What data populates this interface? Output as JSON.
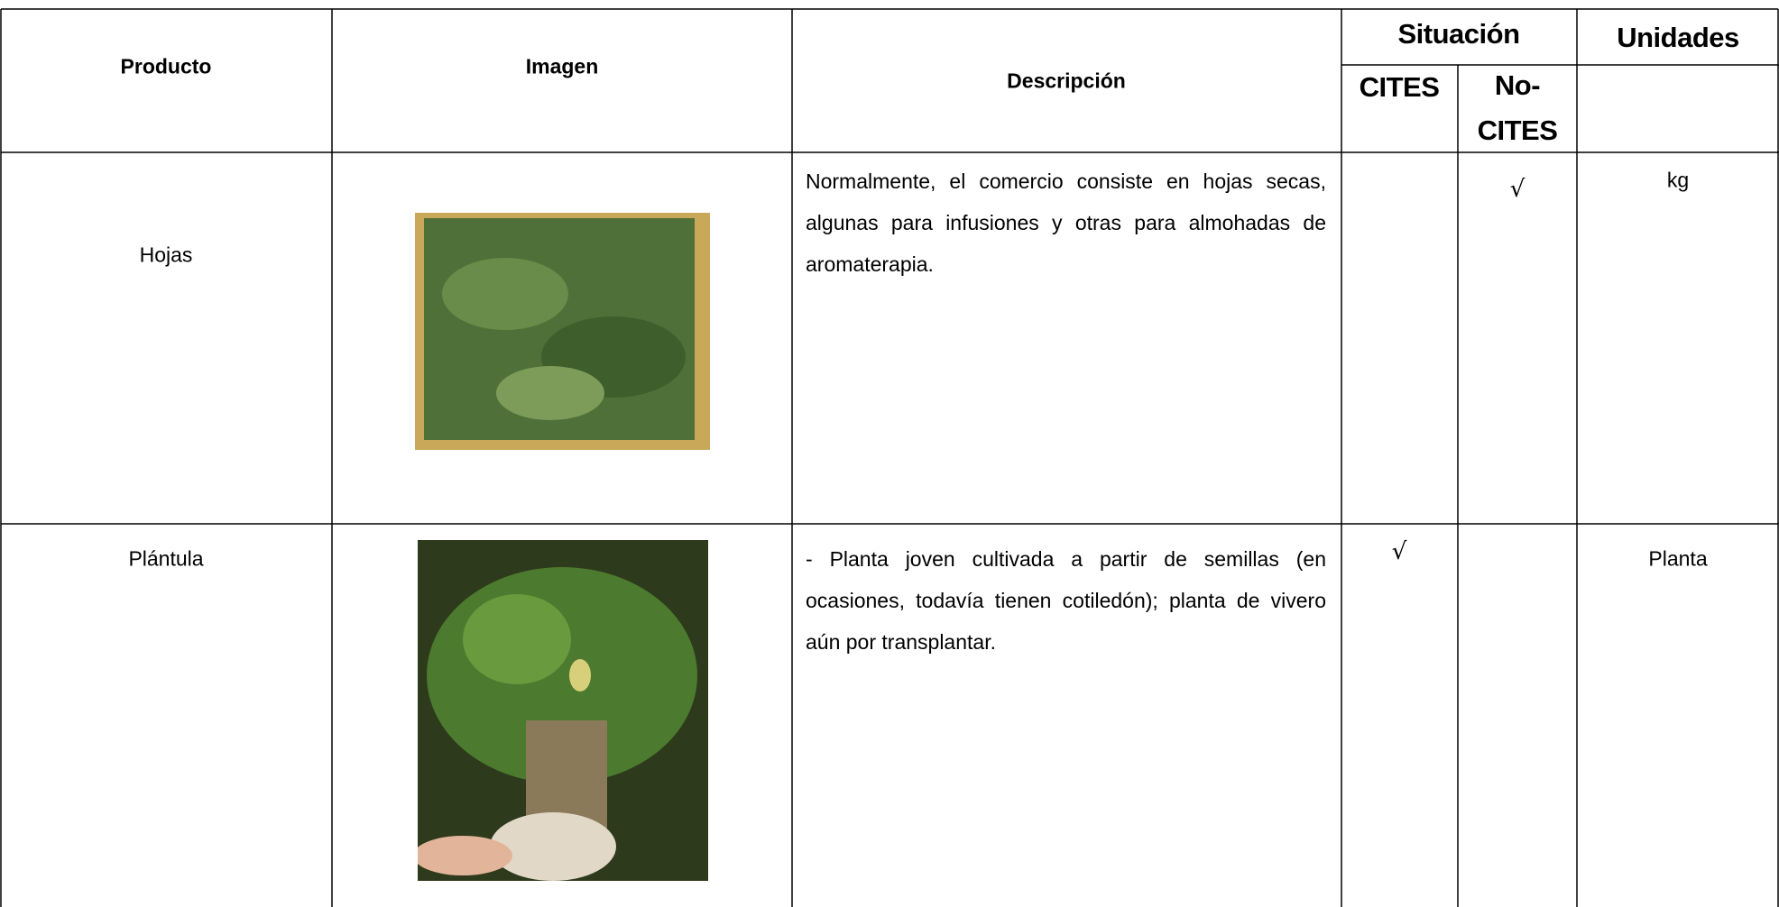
{
  "table": {
    "header": {
      "product": "Producto",
      "image": "Imagen",
      "description": "Descripción",
      "status": "Situación",
      "cites": "CITES",
      "non_cites": "No-CITES",
      "units": "Unidades"
    },
    "rows": [
      {
        "product": "Hojas",
        "description": "Normalmente, el comercio consiste en hojas secas, algunas para infusiones y otras para almohadas de aromaterapia.",
        "non_cites": "√",
        "units": "kg"
      },
      {
        "product": "Plántula",
        "description": "- Planta joven cultivada a partir de semillas (en ocasiones, todavía tienen cotiledón); planta de vivero aún por transplantar.",
        "cites": "√",
        "units": "Planta"
      }
    ]
  }
}
